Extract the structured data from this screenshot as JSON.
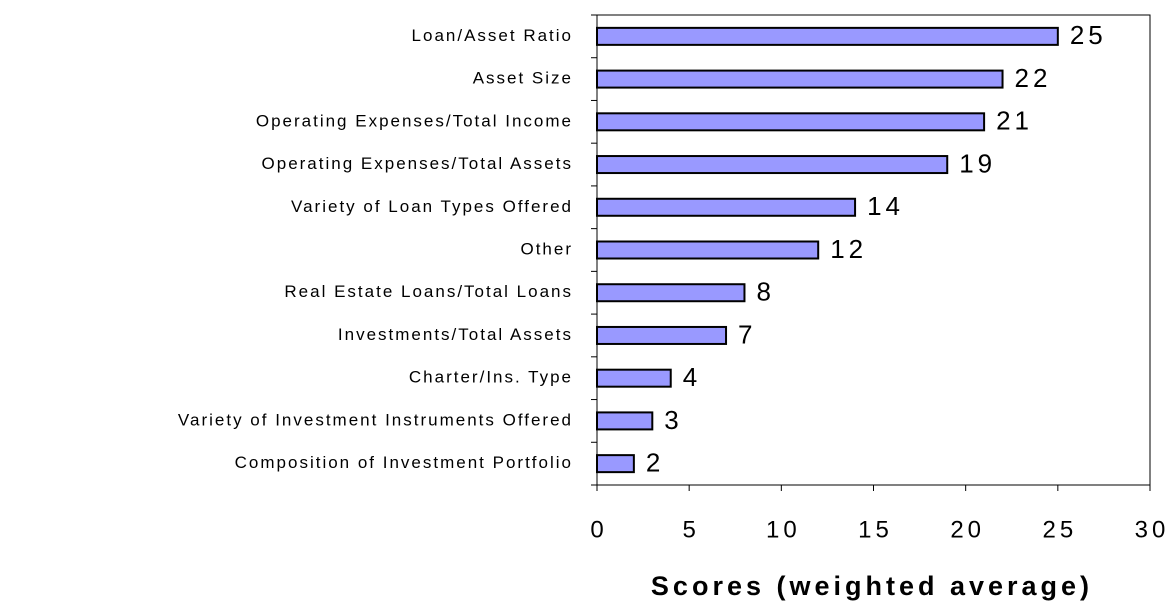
{
  "chart_data": {
    "type": "bar",
    "horizontal": true,
    "x_label": "Scores (weighted average)",
    "categories": [
      "Loan/Asset Ratio",
      "Asset Size",
      "Operating Expenses/Total Income",
      "Operating Expenses/Total Assets",
      "Variety of Loan Types Offered",
      "Other",
      "Real Estate Loans/Total Loans",
      "Investments/Total Assets",
      "Charter/Ins. Type",
      "Variety of Investment Instruments Offered",
      "Composition of Investment Portfolio"
    ],
    "values": [
      25,
      22,
      21,
      19,
      14,
      12,
      8,
      7,
      4,
      3,
      2
    ],
    "color": "#9999ff",
    "xlim": [
      0,
      30
    ],
    "xticks": [
      0,
      5,
      10,
      15,
      20,
      25,
      30
    ],
    "grid": false
  }
}
